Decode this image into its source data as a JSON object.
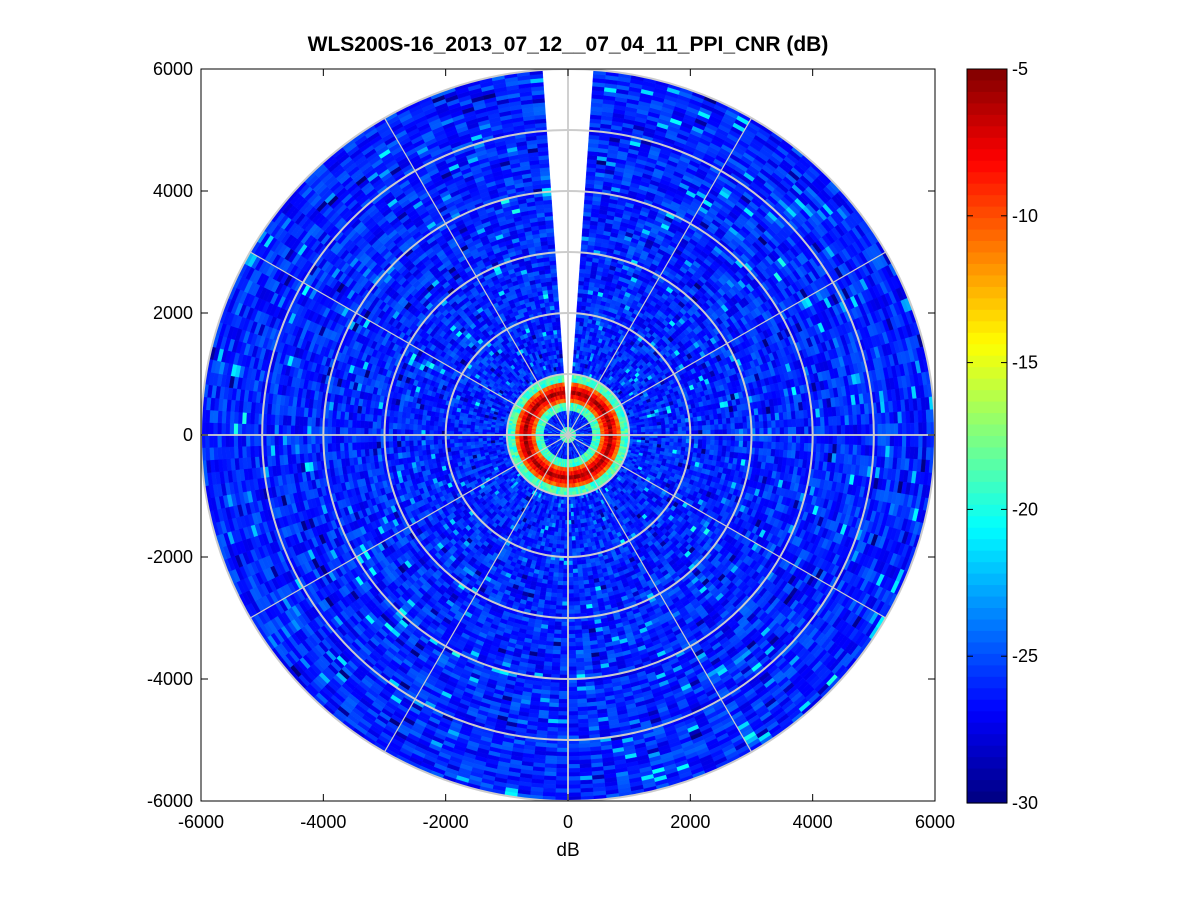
{
  "chart_data": {
    "type": "heatmap",
    "subtype": "polar-ppi",
    "title": "WLS200S-16_2013_07_12__07_04_11_PPI_CNR (dB)",
    "xlabel": "dB",
    "ylabel": "",
    "xlim": [
      -6000,
      6000
    ],
    "ylim": [
      -6000,
      6000
    ],
    "xticks": [
      "-6000",
      "-4000",
      "-2000",
      "0",
      "2000",
      "4000",
      "6000"
    ],
    "yticks": [
      "6000",
      "4000",
      "2000",
      "0",
      "-2000",
      "-4000",
      "-6000"
    ],
    "max_range": 6000,
    "range_rings": [
      1000,
      2000,
      3000,
      4000,
      5000,
      6000
    ],
    "spoke_angles_deg": [
      0,
      30,
      60,
      90,
      120,
      150,
      180,
      210,
      240,
      270,
      300,
      330
    ],
    "missing_sector_deg": [
      -4,
      4
    ],
    "grid": true,
    "colormap": "jet",
    "colorbar": {
      "range": [
        -30,
        -5
      ],
      "ticks": [
        "-5",
        "-10",
        "-15",
        "-20",
        "-25",
        "-30"
      ]
    },
    "field_summary": {
      "background_cnr_db": -26,
      "high_cnr_ring_range_m": 700,
      "high_cnr_ring_db": -6
    }
  }
}
